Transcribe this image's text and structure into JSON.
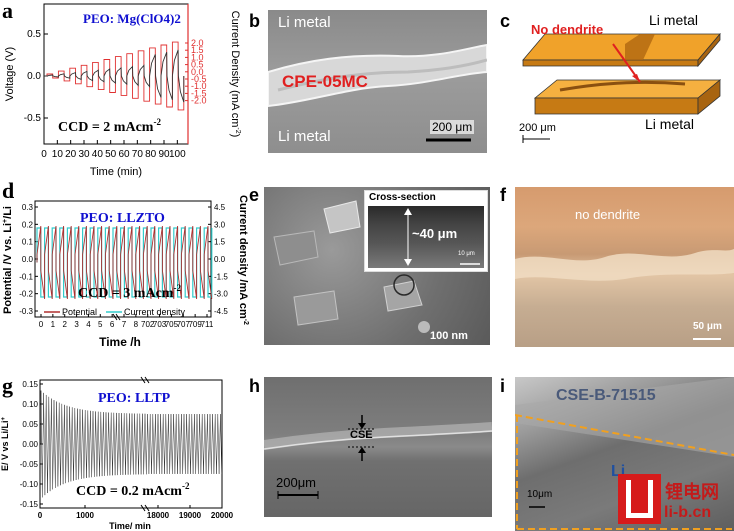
{
  "figure": {
    "panel_labels": [
      "a",
      "b",
      "c",
      "d",
      "e",
      "f",
      "g",
      "h",
      "i"
    ]
  },
  "panel_a": {
    "title": "PEO: Mg(ClO4)2",
    "ccd": "CCD = 2 mAcm",
    "ccd_sup": "-2",
    "xlabel": "Time (min)",
    "ylabel_left": "Voltage (V)",
    "ylabel_right": "Current Density (mA cm",
    "ylabel_right_sup": "-2",
    "xticks": [
      "0",
      "10",
      "20",
      "30",
      "40",
      "50",
      "60",
      "70",
      "80",
      "90",
      "100"
    ],
    "yticks_left": [
      "0.5",
      "0.0",
      "-0.5"
    ],
    "yticks_right": [
      "2.0",
      "1.5",
      "1.0",
      "0.5",
      "0.0",
      "-0.5",
      "-1.0",
      "-1.5",
      "-2.0"
    ],
    "colors": {
      "voltage": "#333333",
      "current": "#e03030"
    }
  },
  "panel_b": {
    "top_label": "Li metal",
    "mid_label": "CPE-05MC",
    "bottom_label": "Li metal",
    "scale": "200 μm"
  },
  "panel_c": {
    "annotation": "No dendrite",
    "top_label": "Li metal",
    "bottom_label": "Li metal",
    "scale": "200 μm"
  },
  "panel_d": {
    "title": "PEO: LLZTO",
    "ccd": "CCD = 3 mAcm",
    "ccd_sup": "-2",
    "xlabel": "Time /h",
    "ylabel_left": "Potential /V vs. Li",
    "ylabel_left_sup": "+",
    "ylabel_left_end": "/Li",
    "ylabel_right": "Current density /mA cm",
    "ylabel_right_sup": "-2",
    "xticks": [
      "0",
      "1",
      "2",
      "3",
      "4",
      "5",
      "6",
      "7",
      "8",
      "702",
      "703",
      "705",
      "707",
      "709",
      "711"
    ],
    "yticks_left": [
      "0.3",
      "0.2",
      "0.1",
      "0.0",
      "-0.1",
      "-0.2",
      "-0.3"
    ],
    "yticks_right": [
      "4.5",
      "3.0",
      "1.5",
      "0.0",
      "-1.5",
      "-3.0",
      "-4.5"
    ],
    "legend": [
      "Potential",
      "Current density"
    ],
    "colors": {
      "potential": "#b03030",
      "current": "#33cccc"
    }
  },
  "panel_e": {
    "inset_title": "Cross-section",
    "thickness": "~40 μm",
    "inset_scale": "10 μm",
    "scale": "100 nm"
  },
  "panel_f": {
    "annotation": "no dendrite",
    "scale": "50 μm"
  },
  "panel_g": {
    "title": "PEO: LLTP",
    "ccd": "CCD = 0.2 mAcm",
    "ccd_sup": "-2",
    "xlabel": "Time/ min",
    "ylabel": "E/ V vs Li/Li",
    "ylabel_sup": "+",
    "xticks": [
      "0",
      "1000",
      "18000",
      "19000",
      "20000"
    ],
    "yticks": [
      "0.15",
      "0.10",
      "0.05",
      "0.00",
      "-0.05",
      "-0.10",
      "-0.15"
    ]
  },
  "panel_h": {
    "label": "CSE",
    "scale": "200μm"
  },
  "panel_i": {
    "top_label": "CSE-B-71515",
    "bottom_label": "Li",
    "scale": "10μm"
  },
  "watermark": {
    "chars": "锂电网",
    "url": "li-b.cn"
  }
}
